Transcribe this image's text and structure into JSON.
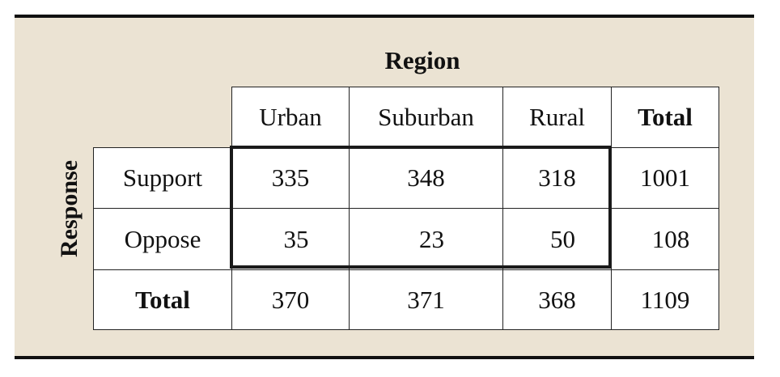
{
  "table": {
    "column_group_label": "Region",
    "row_group_label": "Response",
    "columns": [
      "Urban",
      "Suburban",
      "Rural",
      "Total"
    ],
    "rows": [
      {
        "label": "Support",
        "values": [
          "335",
          "348",
          "318",
          "1001"
        ]
      },
      {
        "label": "Oppose",
        "values": [
          "35",
          "23",
          "50",
          "108"
        ]
      },
      {
        "label": "Total",
        "values": [
          "370",
          "371",
          "368",
          "1109"
        ]
      }
    ]
  }
}
